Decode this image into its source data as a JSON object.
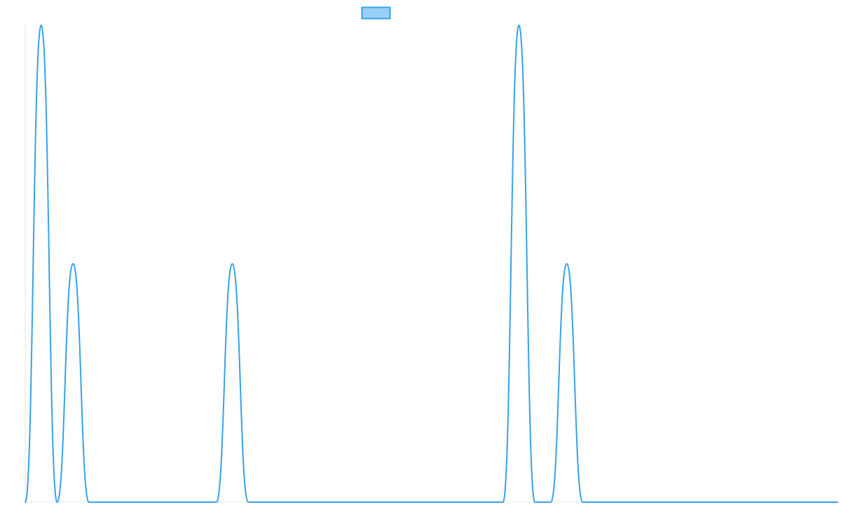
{
  "chart_data": {
    "type": "line",
    "title": "",
    "xlabel": "",
    "ylabel": "",
    "x": [
      0,
      1,
      2,
      3,
      4,
      5,
      6,
      7,
      8,
      9,
      10,
      11,
      12,
      13,
      14,
      15,
      16,
      17,
      18,
      19,
      20,
      21,
      22,
      23,
      24,
      25,
      26,
      27,
      28,
      29,
      30,
      31,
      32,
      33,
      34,
      35,
      36,
      37,
      38,
      39,
      40,
      41,
      42,
      43,
      44,
      45,
      46,
      47,
      48,
      49,
      50,
      51
    ],
    "series": [
      {
        "name": "",
        "color": "#36a2eb",
        "fill": "#9ad0f5",
        "values": [
          0,
          3,
          0,
          1.5,
          0,
          0,
          0,
          0,
          0,
          0,
          0,
          0,
          0,
          1.5,
          0,
          0,
          0,
          0,
          0,
          0,
          0,
          0,
          0,
          0,
          0,
          0,
          0,
          0,
          0,
          0,
          0,
          3,
          0,
          0,
          1.5,
          0,
          0,
          0,
          0,
          0,
          0,
          0,
          0,
          0,
          0,
          0,
          0,
          0,
          0,
          0,
          0,
          0
        ]
      }
    ],
    "ylim": [
      0,
      3
    ],
    "grid": false,
    "legend": "top-center"
  }
}
